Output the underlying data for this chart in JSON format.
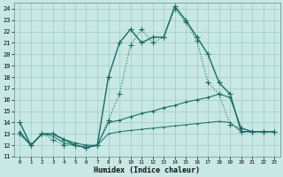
{
  "xlabel": "Humidex (Indice chaleur)",
  "background_color": "#c8e8e4",
  "grid_color": "#a0c8c4",
  "line_color": "#1a6b65",
  "xlim": [
    -0.5,
    23.5
  ],
  "ylim": [
    11,
    24.5
  ],
  "yticks": [
    11,
    12,
    13,
    14,
    15,
    16,
    17,
    18,
    19,
    20,
    21,
    22,
    23,
    24
  ],
  "xticks": [
    0,
    1,
    2,
    3,
    4,
    5,
    6,
    7,
    8,
    9,
    10,
    11,
    12,
    13,
    14,
    15,
    16,
    17,
    18,
    19,
    20,
    21,
    22,
    23
  ],
  "series": [
    {
      "x": [
        0,
        1,
        2,
        3,
        4,
        5,
        6,
        7,
        8,
        9,
        10,
        11,
        12,
        13,
        14,
        15,
        16,
        17,
        18,
        19,
        20,
        21,
        22,
        23
      ],
      "y": [
        14.0,
        12.0,
        13.0,
        13.0,
        12.5,
        12.0,
        11.8,
        12.0,
        18.0,
        21.0,
        22.2,
        21.0,
        21.5,
        21.5,
        24.2,
        23.0,
        21.5,
        20.0,
        17.5,
        16.5,
        13.2,
        13.2,
        13.2,
        13.2
      ],
      "style": "-",
      "marker": "+",
      "markersize": 5,
      "linewidth": 1.0,
      "dotted": false
    },
    {
      "x": [
        0,
        1,
        2,
        3,
        4,
        5,
        6,
        7,
        8,
        9,
        10,
        11,
        12,
        13,
        14,
        15,
        16,
        17,
        18,
        19,
        20,
        21,
        22,
        23
      ],
      "y": [
        13.0,
        12.0,
        13.0,
        12.5,
        12.0,
        12.0,
        11.8,
        12.0,
        14.2,
        16.5,
        20.8,
        22.2,
        21.0,
        21.5,
        24.0,
        22.8,
        21.2,
        17.5,
        16.5,
        13.8,
        13.5,
        13.2,
        13.2,
        13.2
      ],
      "style": ":",
      "marker": "+",
      "markersize": 4,
      "linewidth": 0.8,
      "dotted": true
    },
    {
      "x": [
        0,
        1,
        2,
        3,
        4,
        5,
        6,
        7,
        8,
        9,
        10,
        11,
        12,
        13,
        14,
        15,
        16,
        17,
        18,
        19,
        20,
        21,
        22,
        23
      ],
      "y": [
        13.2,
        12.0,
        13.0,
        13.0,
        12.5,
        12.2,
        12.0,
        12.0,
        14.0,
        14.2,
        14.5,
        14.8,
        15.0,
        15.3,
        15.5,
        15.8,
        16.0,
        16.2,
        16.5,
        16.2,
        13.5,
        13.2,
        13.2,
        13.2
      ],
      "style": "-",
      "marker": "+",
      "markersize": 3,
      "linewidth": 0.8,
      "dotted": false
    },
    {
      "x": [
        0,
        1,
        2,
        3,
        4,
        5,
        6,
        7,
        8,
        9,
        10,
        11,
        12,
        13,
        14,
        15,
        16,
        17,
        18,
        19,
        20,
        21,
        22,
        23
      ],
      "y": [
        13.0,
        12.0,
        13.0,
        12.8,
        12.2,
        12.0,
        11.8,
        12.0,
        13.0,
        13.2,
        13.3,
        13.4,
        13.5,
        13.6,
        13.7,
        13.8,
        13.9,
        14.0,
        14.1,
        14.0,
        13.2,
        13.2,
        13.2,
        13.2
      ],
      "style": "-",
      "marker": "+",
      "markersize": 2,
      "linewidth": 0.7,
      "dotted": false
    }
  ]
}
